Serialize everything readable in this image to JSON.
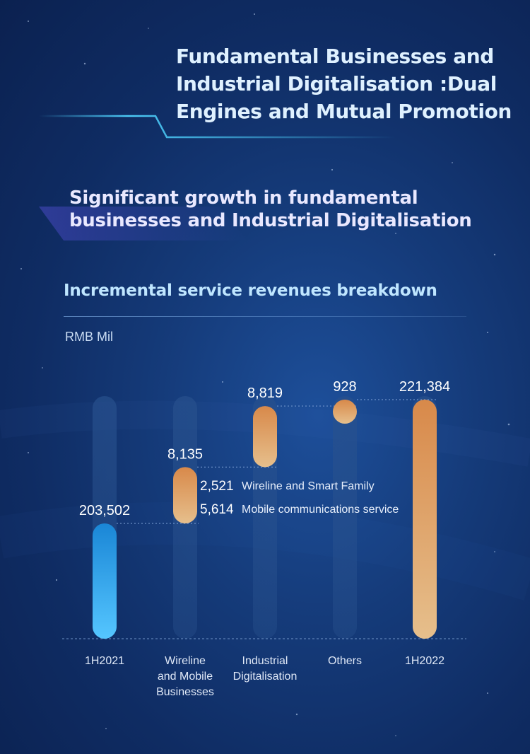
{
  "header": {
    "title": "Fundamental Businesses and Industrial Digitalisation :Dual Engines and Mutual Promotion",
    "title_lines": [
      "Fundamental Businesses and",
      "Industrial Digitalisation :Dual",
      "Engines and Mutual Promotion"
    ],
    "subtitle_lines": [
      "Significant growth in fundamental",
      "businesses and Industrial Digitalisation"
    ]
  },
  "section": {
    "title": "Incremental service revenues breakdown",
    "unit": "RMB Mil"
  },
  "colors": {
    "blue_bar": "#3fa9ea",
    "orange_bar": "#dba06a",
    "track": "#2a4d86",
    "text": "#ffffff"
  },
  "chart_data": {
    "type": "bar",
    "subtype": "waterfall",
    "categories": [
      "1H2021",
      "Wireline and Mobile Businesses",
      "Industrial Digitalisation",
      "Others",
      "1H2022"
    ],
    "category_label_lines": [
      [
        "1H2021"
      ],
      [
        "Wireline",
        "and Mobile",
        "Businesses"
      ],
      [
        "Industrial",
        "Digitalisation"
      ],
      [
        "Others"
      ],
      [
        "1H2022"
      ]
    ],
    "values": [
      203502,
      8135,
      8819,
      928,
      221384
    ],
    "value_labels": [
      "203,502",
      "8,135",
      "8,819",
      "928",
      "221,384"
    ],
    "measures": [
      "total",
      "increment",
      "increment",
      "increment",
      "total"
    ],
    "breakdown": [
      {
        "value": 2521,
        "label_value": "2,521",
        "label": "Wireline and Smart Family"
      },
      {
        "value": 5614,
        "label_value": "5,614",
        "label": "Mobile communications service"
      }
    ],
    "unit": "RMB Mil",
    "grid": false,
    "legend": "none"
  }
}
